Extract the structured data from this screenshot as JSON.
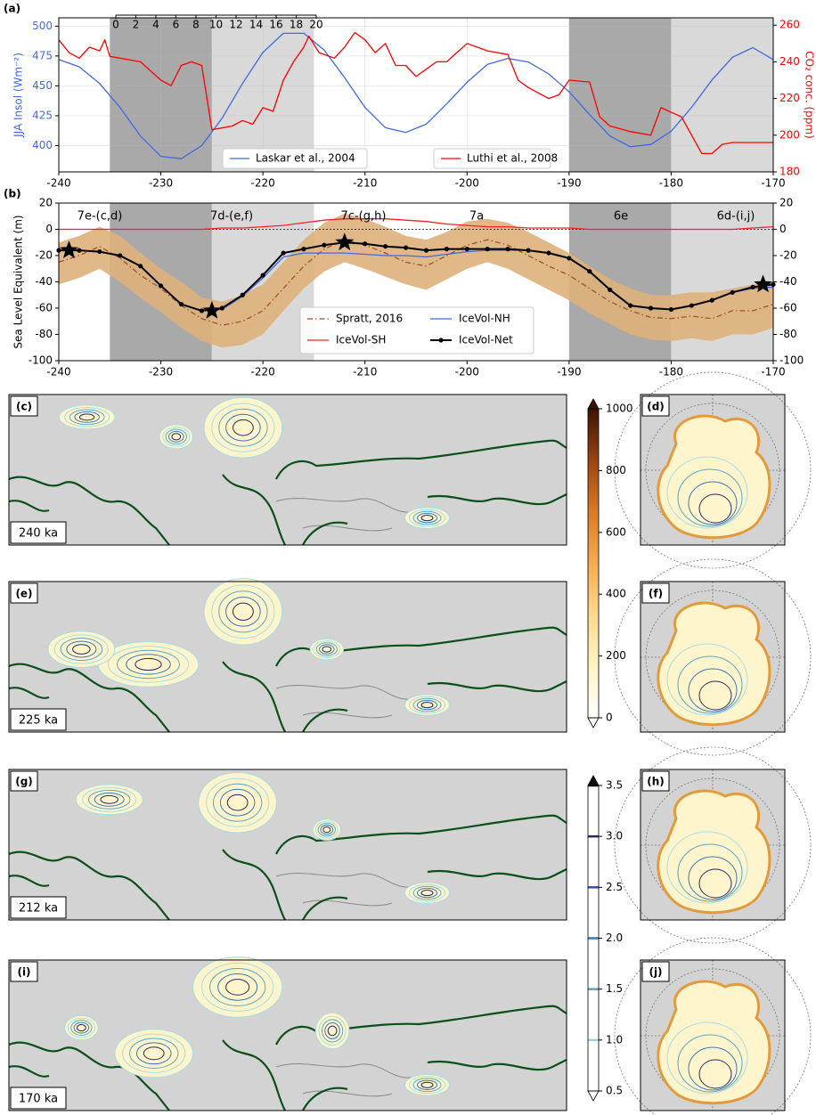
{
  "chart_data": [
    {
      "type": "line",
      "label": "(a)",
      "ylabel": "JJA Insol (Wm⁻²)",
      "y2label": "CO₂ conc. (ppm)",
      "xlim": [
        -240,
        -170
      ],
      "xticks": [
        -240,
        -230,
        -220,
        -210,
        -200,
        -190,
        -180,
        -170
      ],
      "ylim": [
        378,
        507
      ],
      "yticks": [
        400,
        425,
        450,
        475,
        500
      ],
      "y2lim": [
        180,
        264
      ],
      "y2ticks": [
        180,
        200,
        220,
        240,
        260
      ],
      "grid": true,
      "legend": "lower center",
      "inset_xticks": [
        0,
        2,
        4,
        6,
        8,
        10,
        12,
        14,
        16,
        18,
        20
      ],
      "shading": [
        {
          "from": -235,
          "to": -225,
          "color": "#a9a9a9"
        },
        {
          "from": -225,
          "to": -215,
          "color": "#d9d9d9"
        },
        {
          "from": -190,
          "to": -180,
          "color": "#a9a9a9"
        },
        {
          "from": -180,
          "to": -170,
          "color": "#d9d9d9"
        }
      ],
      "x": [
        -240,
        -238,
        -236,
        -234,
        -232,
        -230,
        -228,
        -226,
        -224,
        -222,
        -220,
        -218,
        -216,
        -214,
        -212,
        -210,
        -208,
        -206,
        -204,
        -202,
        -200,
        -198,
        -196,
        -194,
        -192,
        -190,
        -188,
        -186,
        -184,
        -182,
        -180,
        -178,
        -176,
        -174,
        -172,
        -170
      ],
      "series": [
        {
          "name": "Laskar et al., 2004",
          "color": "#4169e1",
          "values": [
            472,
            466,
            452,
            432,
            408,
            391,
            389,
            400,
            423,
            452,
            478,
            494,
            494,
            480,
            457,
            432,
            415,
            411,
            418,
            435,
            453,
            468,
            473,
            470,
            460,
            445,
            426,
            408,
            399,
            401,
            412,
            432,
            455,
            474,
            482,
            472
          ]
        },
        {
          "name": "Luthi et al., 2008",
          "color": "#ff0000",
          "axis": "y2",
          "x": [
            -240,
            -239,
            -238,
            -237,
            -236,
            -235.5,
            -235,
            -232,
            -230,
            -229,
            -228,
            -227,
            -226,
            -225,
            -223,
            -222,
            -221,
            -220,
            -219,
            -218,
            -217,
            -216,
            -215.5,
            -214.5,
            -213,
            -212,
            -211,
            -210,
            -209,
            -208,
            -207,
            -206,
            -205,
            -204,
            -203,
            -202,
            -201,
            -200,
            -198,
            -196,
            -195,
            -194,
            -192,
            -191,
            -190,
            -188,
            -187,
            -186,
            -184,
            -182,
            -181,
            -179,
            -177,
            -176,
            -175,
            -174,
            -172,
            -170
          ],
          "values": [
            252,
            245,
            242,
            248,
            246,
            252,
            243,
            240,
            230,
            227,
            238,
            240,
            238,
            203,
            205,
            208,
            206,
            215,
            213,
            230,
            240,
            248,
            254,
            245,
            242,
            248,
            256,
            252,
            245,
            250,
            238,
            238,
            232,
            236,
            240,
            240,
            245,
            250,
            246,
            244,
            230,
            226,
            220,
            222,
            230,
            229,
            210,
            205,
            202,
            200,
            215,
            210,
            190,
            190,
            195,
            196,
            196,
            196
          ]
        }
      ]
    },
    {
      "type": "line",
      "label": "(b)",
      "ylabel": "Sea Level Equivalent (m)",
      "xlim": [
        -240,
        -170
      ],
      "xticks": [
        -240,
        -230,
        -220,
        -210,
        -200,
        -190,
        -180,
        -170
      ],
      "ylim": [
        -100,
        20
      ],
      "yticks": [
        -100,
        -80,
        -60,
        -40,
        -20,
        0,
        20
      ],
      "y2lim": [
        -100,
        20
      ],
      "y2ticks": [
        -100,
        -80,
        -60,
        -40,
        -20,
        0,
        20
      ],
      "grid": false,
      "legend": "lower right",
      "zero_line": true,
      "annotations": [
        "7e-(c,d)",
        "7d-(e,f)",
        "7c-(g,h)",
        "7a",
        "6e",
        "6d-(i,j)"
      ],
      "shading": [
        {
          "from": -235,
          "to": -225,
          "color": "#a9a9a9"
        },
        {
          "from": -225,
          "to": -215,
          "color": "#d9d9d9"
        },
        {
          "from": -190,
          "to": -180,
          "color": "#a9a9a9"
        },
        {
          "from": -180,
          "to": -170,
          "color": "#d9d9d9"
        }
      ],
      "x": [
        -240,
        -238,
        -236,
        -234,
        -232,
        -230,
        -228,
        -226,
        -224,
        -222,
        -220,
        -218,
        -216,
        -214,
        -212,
        -210,
        -208,
        -206,
        -204,
        -202,
        -200,
        -198,
        -196,
        -194,
        -192,
        -190,
        -188,
        -186,
        -184,
        -182,
        -180,
        -178,
        -176,
        -174,
        -172,
        -170
      ],
      "series": [
        {
          "name": "Spratt, 2016",
          "color": "#a0522d",
          "dash": "dashdot",
          "values": [
            -25,
            -20,
            -13,
            -22,
            -35,
            -45,
            -58,
            -68,
            -73,
            -70,
            -62,
            -45,
            -28,
            -15,
            -8,
            -12,
            -18,
            -25,
            -28,
            -20,
            -12,
            -8,
            -12,
            -20,
            -28,
            -35,
            -45,
            -55,
            -62,
            -67,
            -68,
            -66,
            -68,
            -62,
            -62,
            -57
          ],
          "band": {
            "color": "#deb07a",
            "upper": [
              -10,
              -5,
              2,
              -5,
              -18,
              -30,
              -40,
              -52,
              -55,
              -50,
              -42,
              -25,
              -8,
              5,
              12,
              8,
              2,
              -5,
              -8,
              -2,
              6,
              8,
              5,
              -2,
              -10,
              -18,
              -28,
              -38,
              -45,
              -50,
              -50,
              -48,
              -48,
              -45,
              -42,
              -40
            ],
            "lower": [
              -42,
              -37,
              -30,
              -40,
              -52,
              -63,
              -75,
              -85,
              -90,
              -88,
              -80,
              -62,
              -45,
              -32,
              -25,
              -30,
              -36,
              -42,
              -46,
              -38,
              -30,
              -25,
              -30,
              -38,
              -46,
              -54,
              -64,
              -72,
              -80,
              -84,
              -85,
              -83,
              -85,
              -80,
              -80,
              -75
            ]
          }
        },
        {
          "name": "IceVol-SH",
          "color": "#ff2020",
          "values": [
            0,
            0,
            0,
            0,
            0,
            0,
            0,
            0,
            1,
            1,
            2,
            3,
            5,
            7,
            8,
            8,
            8,
            7,
            6,
            4,
            3,
            2,
            2,
            1,
            1,
            1,
            0,
            0,
            0,
            0,
            0,
            0,
            0,
            0,
            1,
            2
          ]
        },
        {
          "name": "IceVol-NH",
          "color": "#4169e1",
          "values": [
            -16,
            -16,
            -17,
            -20,
            -28,
            -43,
            -57,
            -62,
            -61,
            -51,
            -37,
            -21,
            -18,
            -18,
            -18,
            -19,
            -20,
            -20,
            -21,
            -19,
            -17,
            -16,
            -16,
            -16,
            -18,
            -22,
            -32,
            -46,
            -58,
            -60,
            -61,
            -58,
            -54,
            -48,
            -45,
            -44
          ]
        },
        {
          "name": "IceVol-Net",
          "color": "#000000",
          "marker": "o",
          "width": 2,
          "values": [
            -16,
            -16,
            -17,
            -20,
            -28,
            -43,
            -57,
            -62,
            -60,
            -50,
            -35,
            -18,
            -15,
            -12,
            -10,
            -11,
            -13,
            -14,
            -16,
            -15,
            -15,
            -15,
            -15,
            -16,
            -18,
            -22,
            -32,
            -46,
            -58,
            -60,
            -61,
            -58,
            -54,
            -48,
            -44,
            -42
          ]
        }
      ],
      "highlights": {
        "x": [
          -239,
          -225,
          -212,
          -171
        ],
        "values": [
          -16,
          -62,
          -10,
          -42
        ]
      }
    },
    {
      "type": "colorbar",
      "style": "gradient",
      "ylim": [
        0,
        1000
      ],
      "yticks": [
        0,
        200,
        400,
        600,
        800,
        1000
      ],
      "colors": [
        "#ffffff",
        "#fff4c4",
        "#fdd98e",
        "#f7ac4c",
        "#dc7a24",
        "#9a4410",
        "#3b1404"
      ]
    },
    {
      "type": "colorbar",
      "style": "levels",
      "ylim": [
        0.5,
        3.5
      ],
      "yticks": [
        0.5,
        {
          "value": 1,
          "label": "1.0"
        },
        1.5,
        {
          "value": 2,
          "label": "2.0"
        },
        2.5,
        {
          "value": 3,
          "label": "3.0"
        },
        3.5
      ],
      "colors": [
        "#ffffff",
        "#9fd4dc",
        "#5aa6c8",
        "#3a78b6",
        "#3b4fa0",
        "#2b2560",
        "#111111"
      ]
    }
  ],
  "maps": {
    "global": [
      {
        "label": "(c)",
        "age": "240 ka"
      },
      {
        "label": "(e)",
        "age": "225 ka"
      },
      {
        "label": "(g)",
        "age": "212 ka"
      },
      {
        "label": "(i)",
        "age": "170 ka"
      }
    ],
    "polar": [
      {
        "label": "(d)"
      },
      {
        "label": "(f)"
      },
      {
        "label": "(h)"
      },
      {
        "label": "(j)"
      }
    ]
  }
}
